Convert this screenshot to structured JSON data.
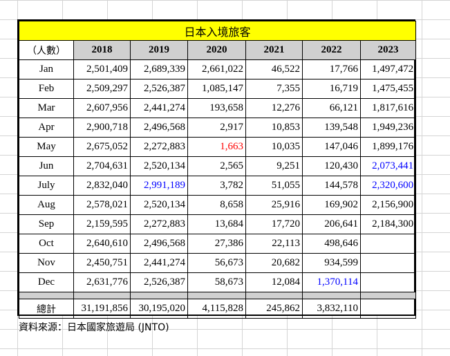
{
  "title": "日本入境旅客",
  "unit_label": "（人數）",
  "years": [
    "2018",
    "2019",
    "2020",
    "2021",
    "2022",
    "2023"
  ],
  "rows": [
    {
      "month": "Jan",
      "values": [
        "2,501,409",
        "2,689,339",
        "2,661,022",
        "46,522",
        "17,766",
        "1,497,472"
      ]
    },
    {
      "month": "Feb",
      "values": [
        "2,509,297",
        "2,526,387",
        "1,085,147",
        "7,355",
        "16,719",
        "1,475,455"
      ]
    },
    {
      "month": "Mar",
      "values": [
        "2,607,956",
        "2,441,274",
        "193,658",
        "12,276",
        "66,121",
        "1,817,616"
      ]
    },
    {
      "month": "Apr",
      "values": [
        "2,900,718",
        "2,496,568",
        "2,917",
        "10,853",
        "139,548",
        "1,949,236"
      ]
    },
    {
      "month": "May",
      "values": [
        "2,675,052",
        "2,272,883",
        "1,663",
        "10,035",
        "147,046",
        "1,899,176"
      ]
    },
    {
      "month": "Jun",
      "values": [
        "2,704,631",
        "2,520,134",
        "2,565",
        "9,251",
        "120,430",
        "2,073,441"
      ]
    },
    {
      "month": "July",
      "values": [
        "2,832,040",
        "2,991,189",
        "3,782",
        "51,055",
        "144,578",
        "2,320,600"
      ]
    },
    {
      "month": "Aug",
      "values": [
        "2,578,021",
        "2,520,134",
        "8,658",
        "25,916",
        "169,902",
        "2,156,900"
      ]
    },
    {
      "month": "Sep",
      "values": [
        "2,159,595",
        "2,272,883",
        "13,684",
        "17,720",
        "206,641",
        "2,184,300"
      ]
    },
    {
      "month": "Oct",
      "values": [
        "2,640,610",
        "2,496,568",
        "27,386",
        "22,113",
        "498,646",
        ""
      ]
    },
    {
      "month": "Nov",
      "values": [
        "2,450,751",
        "2,441,274",
        "56,673",
        "20,682",
        "934,599",
        ""
      ]
    },
    {
      "month": "Dec",
      "values": [
        "2,631,776",
        "2,526,387",
        "58,673",
        "12,084",
        "1,370,114",
        ""
      ]
    }
  ],
  "total_label": "總計",
  "totals": [
    "31,191,856",
    "30,195,020",
    "4,115,828",
    "245,862",
    "3,832,110",
    ""
  ],
  "highlights": {
    "red_cells": [
      {
        "row": "May",
        "year": "2020"
      }
    ],
    "blue_cells": [
      {
        "row": "Jun",
        "year": "2023"
      },
      {
        "row": "July",
        "year": "2019"
      },
      {
        "row": "July",
        "year": "2023"
      },
      {
        "row": "Dec",
        "year": "2022"
      }
    ]
  },
  "colors": {
    "title_bg": "#ffff00",
    "header_bg": "#d0d0d0",
    "red": "#ff0000",
    "blue": "#0000ff"
  },
  "source": "資料來源：日本國家旅遊局 (JNTO)"
}
